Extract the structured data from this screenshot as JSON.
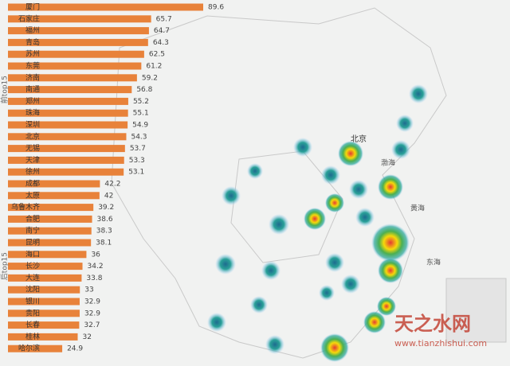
{
  "chart_data": {
    "type": "bar",
    "orientation": "horizontal",
    "color": "#e8823a",
    "series": [
      {
        "name": "前top15",
        "categories": [
          "厦门",
          "石家庄",
          "福州",
          "青岛",
          "苏州",
          "东莞",
          "济南",
          "南通",
          "郑州",
          "珠海",
          "深圳",
          "北京",
          "无锡",
          "天津",
          "徐州"
        ],
        "values": [
          89.6,
          65.7,
          64.7,
          64.3,
          62.5,
          61.2,
          59.2,
          56.8,
          55.2,
          55.1,
          54.9,
          54.3,
          53.7,
          53.3,
          53.1
        ]
      },
      {
        "name": "后top15",
        "categories": [
          "成都",
          "太原",
          "乌鲁木齐",
          "合肥",
          "南宁",
          "昆明",
          "海口",
          "长沙",
          "大连",
          "沈阳",
          "银川",
          "贵阳",
          "长春",
          "桂林",
          "哈尔滨"
        ],
        "values": [
          42.2,
          42.0,
          39.2,
          38.6,
          38.3,
          38.1,
          36.0,
          34.2,
          33.8,
          33.0,
          32.9,
          32.9,
          32.7,
          32.0,
          24.9
        ]
      }
    ]
  },
  "map": {
    "labels": [
      "北京",
      "渤海",
      "黄海",
      "东海"
    ]
  },
  "watermark": {
    "logo": "天之水网",
    "url": "www.tianzhishui.com"
  }
}
